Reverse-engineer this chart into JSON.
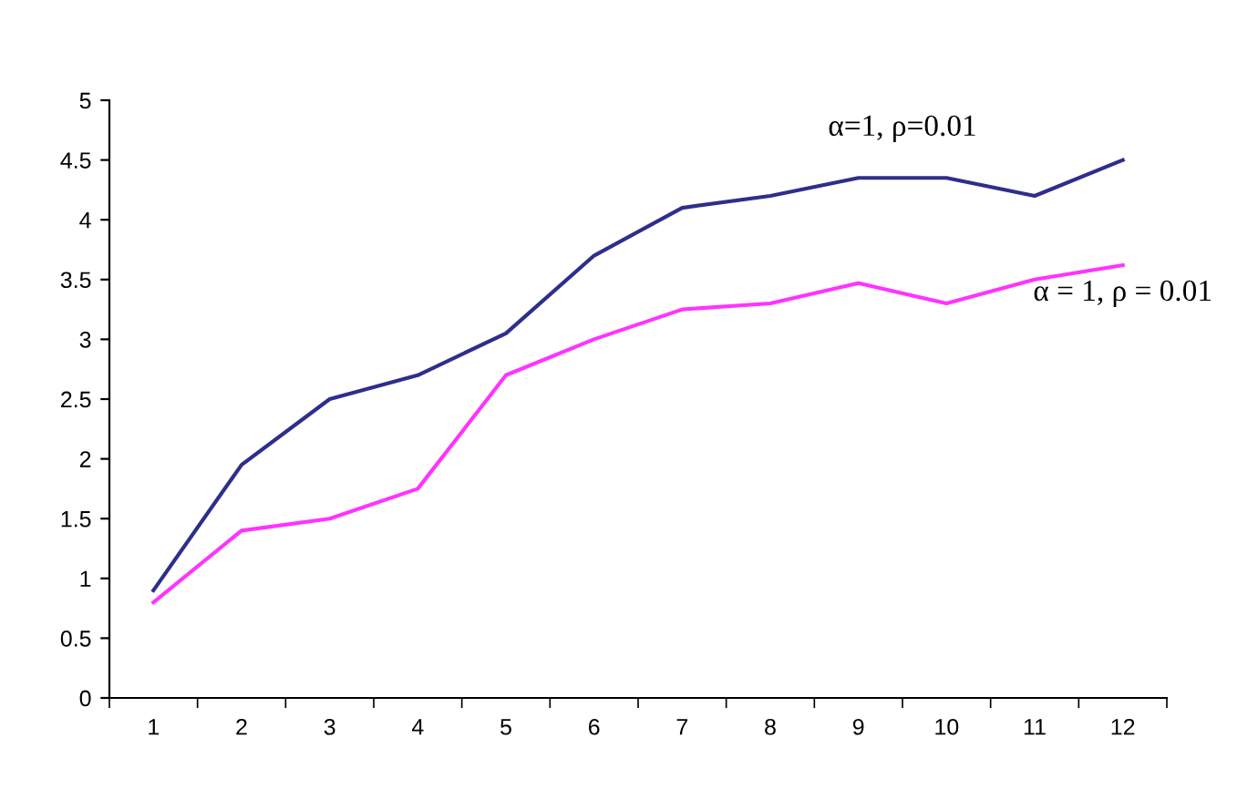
{
  "chart_data": {
    "type": "line",
    "categories": [
      "1",
      "2",
      "3",
      "4",
      "5",
      "6",
      "7",
      "8",
      "9",
      "10",
      "11",
      "12"
    ],
    "series": [
      {
        "name": "α=1, ρ=0.01",
        "color": "#2e2e8c",
        "values": [
          0.9,
          1.95,
          2.5,
          2.7,
          3.05,
          3.7,
          4.1,
          4.2,
          4.35,
          4.35,
          4.2,
          4.5
        ]
      },
      {
        "name": "α = 1, ρ = 0.01",
        "color": "#ff33ff",
        "values": [
          0.8,
          1.4,
          1.5,
          1.75,
          2.7,
          3.0,
          3.25,
          3.3,
          3.47,
          3.3,
          3.5,
          3.62
        ]
      }
    ],
    "ylim": [
      0,
      5
    ],
    "yticks": [
      0,
      0.5,
      1,
      1.5,
      2,
      2.5,
      3,
      3.5,
      4,
      4.5,
      5
    ],
    "grid": false,
    "legend": false,
    "marker": "none",
    "line_style": "solid"
  }
}
